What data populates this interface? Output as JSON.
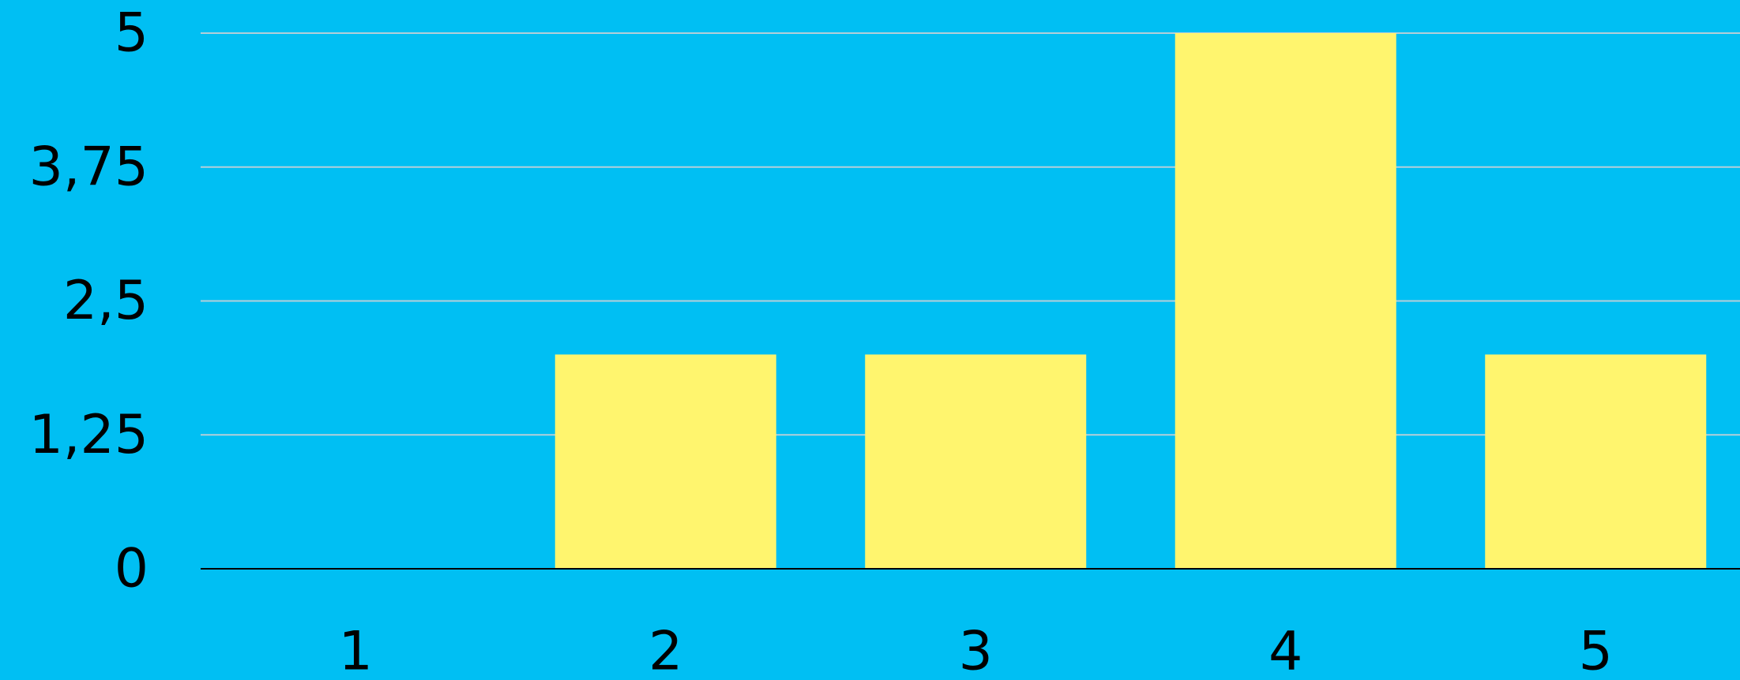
{
  "chart_data": {
    "type": "bar",
    "categories": [
      "1",
      "2",
      "3",
      "4",
      "5"
    ],
    "values": [
      0,
      2,
      2,
      5,
      2
    ],
    "y_ticks": [
      "0",
      "1,25",
      "2,5",
      "3,75",
      "5"
    ],
    "ylim": [
      0,
      5
    ],
    "grid": true,
    "title": "",
    "xlabel": "",
    "ylabel": ""
  },
  "colors": {
    "background": "#00BFF3",
    "bar": "#FFF56E",
    "grid": "#B4CFD9",
    "axis": "#000000"
  }
}
